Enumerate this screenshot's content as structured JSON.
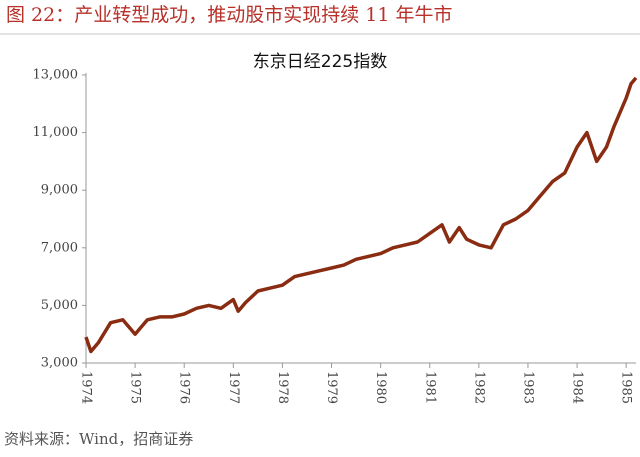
{
  "header": {
    "title": "图 22：产业转型成功，推动股市实现持续 11 年牛市"
  },
  "source": "资料来源：Wind，招商证券",
  "chart_data": {
    "type": "line",
    "title": "东京日经225指数",
    "x": [
      1974.0,
      1974.1,
      1974.25,
      1974.5,
      1974.75,
      1975.0,
      1975.25,
      1975.5,
      1975.75,
      1976.0,
      1976.25,
      1976.5,
      1976.75,
      1977.0,
      1977.1,
      1977.25,
      1977.5,
      1977.75,
      1978.0,
      1978.25,
      1978.5,
      1978.75,
      1979.0,
      1979.25,
      1979.5,
      1979.75,
      1980.0,
      1980.25,
      1980.5,
      1980.75,
      1981.0,
      1981.25,
      1981.4,
      1981.6,
      1981.75,
      1982.0,
      1982.25,
      1982.5,
      1982.75,
      1983.0,
      1983.25,
      1983.5,
      1983.75,
      1984.0,
      1984.2,
      1984.4,
      1984.6,
      1984.75,
      1985.0,
      1985.1,
      1985.2
    ],
    "values": [
      3900,
      3400,
      3700,
      4400,
      4500,
      4000,
      4500,
      4600,
      4600,
      4700,
      4900,
      5000,
      4900,
      5200,
      4800,
      5100,
      5500,
      5600,
      5700,
      6000,
      6100,
      6200,
      6300,
      6400,
      6600,
      6700,
      6800,
      7000,
      7100,
      7200,
      7500,
      7800,
      7200,
      7700,
      7300,
      7100,
      7000,
      7800,
      8000,
      8300,
      8800,
      9300,
      9600,
      10500,
      11000,
      10000,
      10500,
      11200,
      12200,
      12700,
      12900
    ],
    "color": "#8a2c12",
    "xlim": [
      1974,
      1985.2
    ],
    "xticks": [
      1974,
      1975,
      1976,
      1977,
      1978,
      1979,
      1980,
      1981,
      1982,
      1983,
      1984,
      1985
    ],
    "ylim": [
      3000,
      13000
    ],
    "yticks": [
      {
        "value": 3000,
        "label": "3,000"
      },
      {
        "value": 5000,
        "label": "5,000"
      },
      {
        "value": 7000,
        "label": "7,000"
      },
      {
        "value": 9000,
        "label": "9,000"
      },
      {
        "value": 11000,
        "label": "11,000"
      },
      {
        "value": 13000,
        "label": "13,000"
      }
    ]
  }
}
